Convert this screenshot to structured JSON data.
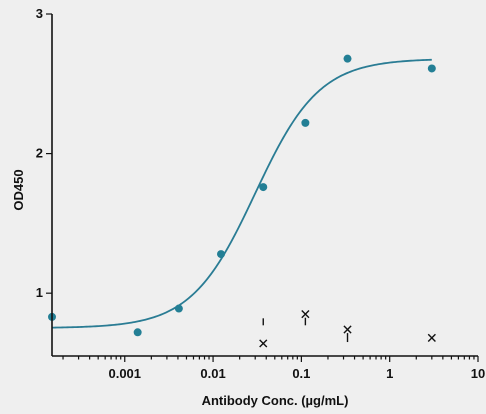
{
  "chart_data": {
    "type": "scatter",
    "title": "",
    "xlabel": "Antibody Conc. (µg/mL)",
    "ylabel": "OD450",
    "xscale": "log",
    "xlim": [
      0.00015,
      10
    ],
    "ylim": [
      0.55,
      3
    ],
    "x_tick_labels": [
      "0.001",
      "0.01",
      "0.1",
      "1",
      "10"
    ],
    "x_tick_values": [
      0.001,
      0.01,
      0.1,
      1,
      10
    ],
    "y_tick_labels": [
      "1",
      "2",
      "3"
    ],
    "y_tick_values": [
      1,
      2,
      3
    ],
    "grid": false,
    "legend": "none",
    "series": [
      {
        "marker": "filled-circle",
        "color": "#237f95",
        "points": [
          {
            "x": 0.00015,
            "y": 0.83
          },
          {
            "x": 0.0014,
            "y": 0.72
          },
          {
            "x": 0.0041,
            "y": 0.89
          },
          {
            "x": 0.0123,
            "y": 1.28
          },
          {
            "x": 0.037,
            "y": 1.76
          },
          {
            "x": 0.111,
            "y": 2.22
          },
          {
            "x": 0.333,
            "y": 2.68
          },
          {
            "x": 3.0,
            "y": 2.61
          }
        ],
        "fit_curve": {
          "model": "4PL",
          "bottom": 0.75,
          "top": 2.68,
          "ec50": 0.03,
          "hill": 1.2,
          "x_from": 0.00015,
          "x_to": 3.0,
          "color": "#2a7c94"
        }
      },
      {
        "marker": "x-cross-with-error-bar",
        "color": "#111111",
        "points": [
          {
            "x": 0.037,
            "y": 0.64,
            "err_high": 0.82
          },
          {
            "x": 0.111,
            "y": 0.85,
            "err_low": 0.77
          },
          {
            "x": 0.333,
            "y": 0.74,
            "err_low": 0.65
          },
          {
            "x": 3.0,
            "y": 0.68
          }
        ]
      }
    ]
  }
}
